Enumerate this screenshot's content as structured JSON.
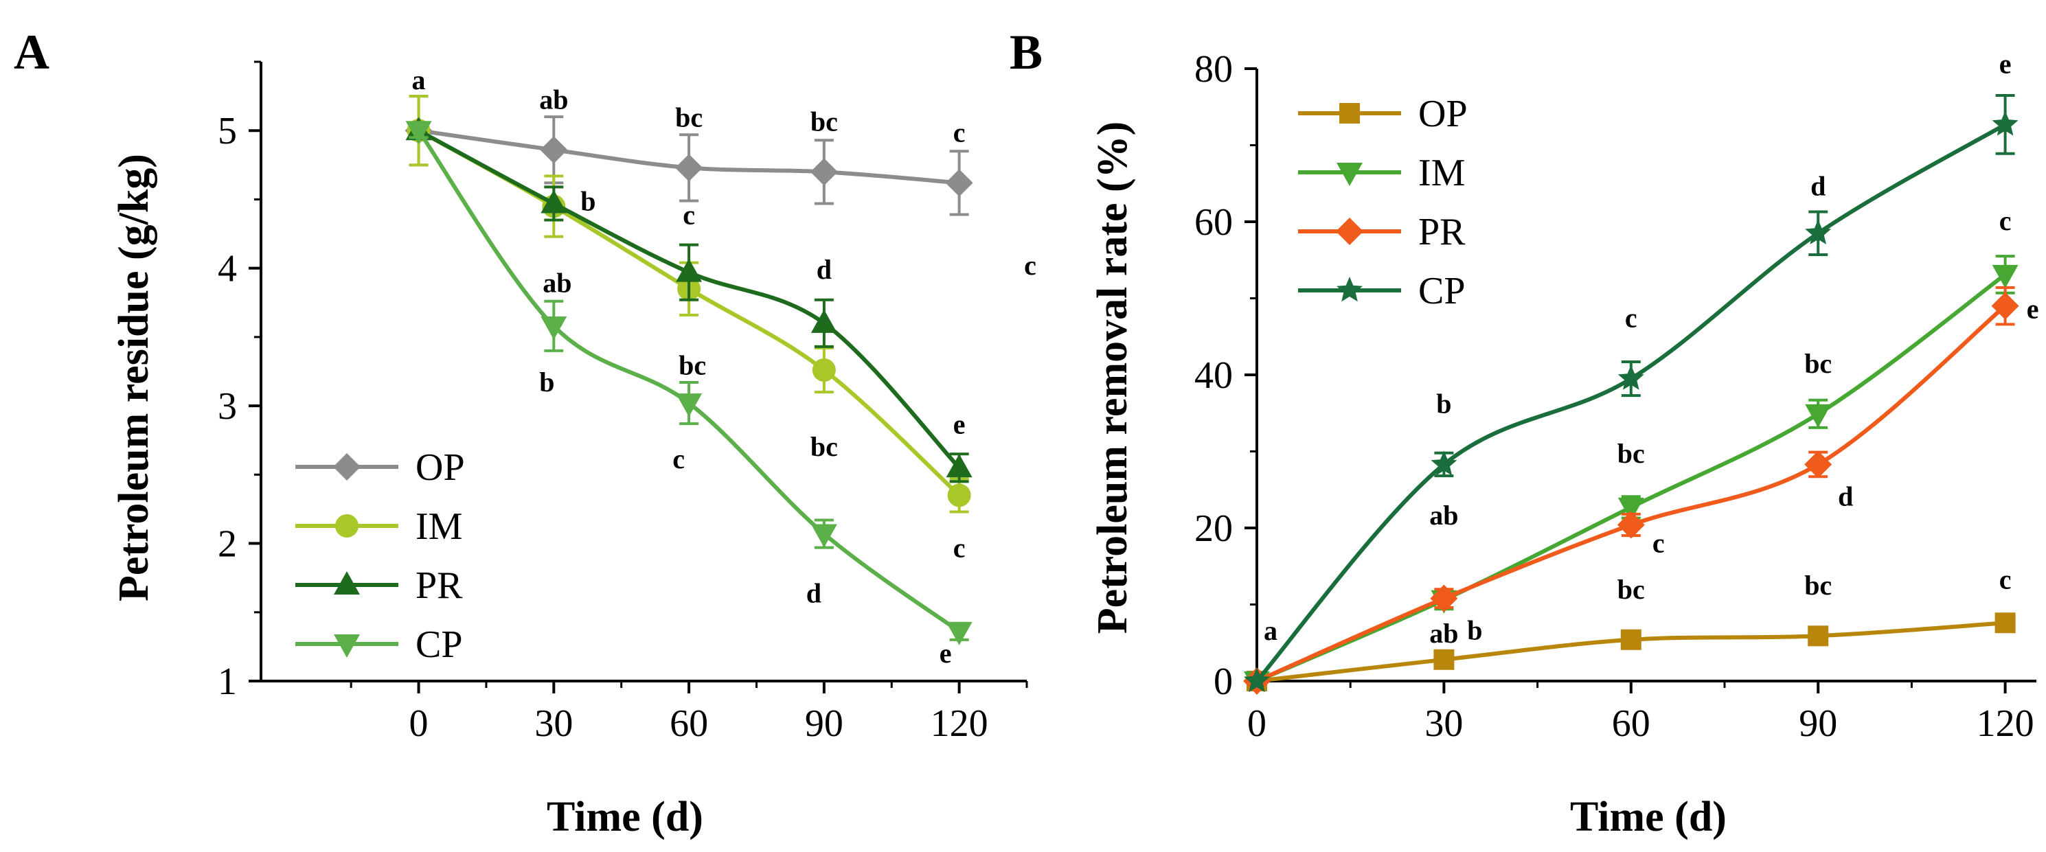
{
  "chart_data": [
    {
      "type": "line",
      "panel_label": "A",
      "xlabel": "Time (d)",
      "ylabel": "Petroleum residue (g/kg)",
      "x": [
        0,
        30,
        60,
        90,
        120
      ],
      "xlim": [
        -35,
        135
      ],
      "ylim": [
        1,
        5.5
      ],
      "xticks": [
        0,
        30,
        60,
        90,
        120
      ],
      "yticks": [
        1,
        2,
        3,
        4,
        5
      ],
      "legend_position": "bottom-left",
      "series": [
        {
          "name": "OP",
          "color": "#8c8c8c",
          "marker": "diamond",
          "values": [
            5.0,
            4.86,
            4.73,
            4.7,
            4.62
          ],
          "errors": [
            0.25,
            0.24,
            0.24,
            0.23,
            0.23
          ],
          "labels": [
            "a",
            "ab",
            "bc",
            "bc",
            "c"
          ]
        },
        {
          "name": "IM",
          "color": "#a8c82a",
          "marker": "circle",
          "values": [
            5.0,
            4.45,
            3.85,
            3.26,
            2.35
          ],
          "errors": [
            0.25,
            0.22,
            0.19,
            0.16,
            0.12
          ],
          "labels": [
            "",
            "ab",
            "bc",
            "bc",
            "c"
          ]
        },
        {
          "name": "PR",
          "color": "#1e6b1e",
          "marker": "triangle-up",
          "values": [
            5.0,
            4.47,
            3.97,
            3.6,
            2.55
          ],
          "errors": [
            0.05,
            0.12,
            0.2,
            0.17,
            0.1
          ],
          "labels": [
            "",
            "b",
            "c",
            "d",
            "e"
          ]
        },
        {
          "name": "CP",
          "color": "#5cb04a",
          "marker": "triangle-down",
          "values": [
            5.0,
            3.58,
            3.02,
            2.07,
            1.36
          ],
          "errors": [
            0.05,
            0.18,
            0.15,
            0.1,
            0.06
          ],
          "labels": [
            "",
            "b",
            "c",
            "d",
            "e"
          ]
        }
      ],
      "annotations": [
        "c"
      ]
    },
    {
      "type": "line",
      "panel_label": "B",
      "xlabel": "Time (d)",
      "ylabel": "Petroleum removal rate (%)",
      "x": [
        0,
        30,
        60,
        90,
        120
      ],
      "xlim": [
        0,
        125
      ],
      "ylim": [
        0,
        80
      ],
      "xticks": [
        0,
        30,
        60,
        90,
        120
      ],
      "yticks": [
        0,
        20,
        40,
        60,
        80
      ],
      "legend_position": "top-left",
      "series": [
        {
          "name": "OP",
          "color": "#b8860b",
          "marker": "square",
          "values": [
            0,
            2.8,
            5.4,
            5.9,
            7.6
          ],
          "errors": [
            0,
            0.9,
            1.0,
            1.0,
            1.0
          ],
          "labels": [
            "a",
            "ab",
            "bc",
            "bc",
            "c"
          ]
        },
        {
          "name": "IM",
          "color": "#46a832",
          "marker": "triangle-down",
          "values": [
            0,
            10.6,
            22.7,
            34.9,
            53.1
          ],
          "errors": [
            0,
            1.2,
            1.4,
            1.8,
            2.4
          ],
          "labels": [
            "",
            "ab",
            "bc",
            "bc",
            "c"
          ]
        },
        {
          "name": "PR",
          "color": "#f05a1a",
          "marker": "diamond",
          "values": [
            0,
            10.8,
            20.4,
            28.3,
            49.0
          ],
          "errors": [
            0,
            1.2,
            1.4,
            1.6,
            2.4
          ],
          "labels": [
            "",
            "b",
            "c",
            "d",
            "e"
          ]
        },
        {
          "name": "CP",
          "color": "#1a6e3c",
          "marker": "star",
          "values": [
            0,
            28.3,
            39.5,
            58.5,
            72.7
          ],
          "errors": [
            0,
            1.5,
            2.2,
            2.8,
            3.8
          ],
          "labels": [
            "",
            "b",
            "c",
            "d",
            "e"
          ]
        }
      ]
    }
  ]
}
